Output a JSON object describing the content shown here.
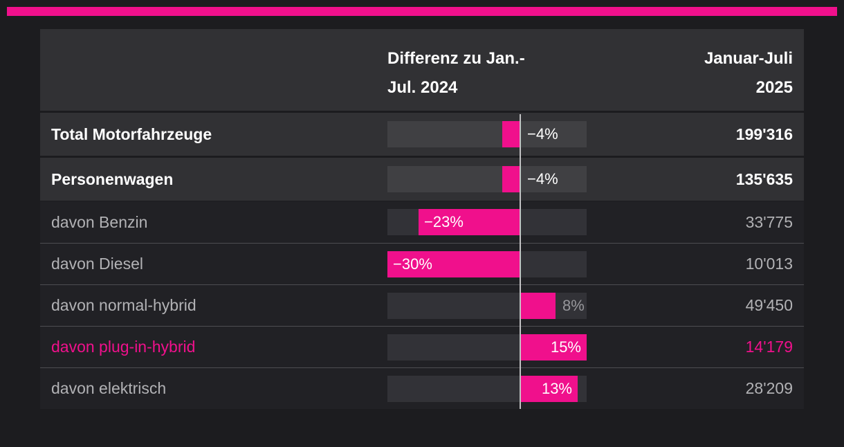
{
  "accent_color": "#f0108c",
  "colors": {
    "page_bg": "#1c1c1f",
    "light_row_bg": "#313134",
    "dark_row_bg": "#212125",
    "pink": "#f0108c",
    "white_text": "#ffffff",
    "gray_text": "#b2b2b5"
  },
  "header": {
    "diff_column": "Differenz zu Jan.-\nJul. 2024",
    "value_column": "Januar-Juli\n2025"
  },
  "rows": [
    {
      "label": "Total Motorfahrzeuge",
      "diff_pct": -4,
      "diff_label": "−4%",
      "value": "199'316",
      "emphasis": "bold",
      "label_pos": "after-center"
    },
    {
      "label": "Personenwagen",
      "diff_pct": -4,
      "diff_label": "−4%",
      "value": "135'635",
      "emphasis": "bold",
      "label_pos": "after-center"
    },
    {
      "label": "davon Benzin",
      "diff_pct": -23,
      "diff_label": "−23%",
      "value": "33'775",
      "emphasis": "dim",
      "label_pos": "inside-left"
    },
    {
      "label": "davon Diesel",
      "diff_pct": -30,
      "diff_label": "−30%",
      "value": "10'013",
      "emphasis": "dim",
      "label_pos": "inside-left"
    },
    {
      "label": "davon normal-hybrid",
      "diff_pct": 8,
      "diff_label": "8%",
      "value": "49'450",
      "emphasis": "dim",
      "label_pos": "outside-right"
    },
    {
      "label": "davon plug-in-hybrid",
      "diff_pct": 15,
      "diff_label": "15%",
      "value": "14'179",
      "emphasis": "pink",
      "label_pos": "inside-right"
    },
    {
      "label": "davon elektrisch",
      "diff_pct": 13,
      "diff_label": "13%",
      "value": "28'209",
      "emphasis": "dim",
      "label_pos": "inside-right"
    }
  ],
  "chart_data": {
    "type": "bar",
    "orientation": "horizontal",
    "categories": [
      "Total Motorfahrzeuge",
      "Personenwagen",
      "davon Benzin",
      "davon Diesel",
      "davon normal-hybrid",
      "davon plug-in-hybrid",
      "davon elektrisch"
    ],
    "series": [
      {
        "name": "Differenz zu Jan.-Jul. 2024 (%)",
        "values": [
          -4,
          -4,
          -23,
          -30,
          8,
          15,
          13
        ]
      },
      {
        "name": "Januar-Juli 2025 (Anzahl)",
        "values": [
          199316,
          135635,
          33775,
          10013,
          49450,
          14179,
          28209
        ]
      }
    ],
    "xlim": [
      -30,
      15
    ],
    "grid": false,
    "legend": false,
    "bar_color": "#f0108c",
    "baseline_at_zero": true
  }
}
